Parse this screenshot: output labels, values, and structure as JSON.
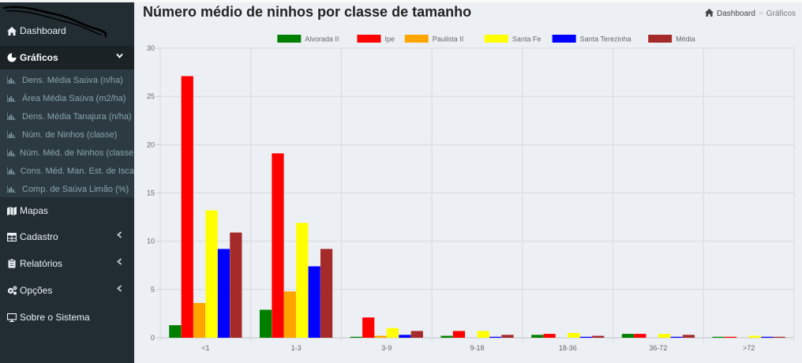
{
  "sidebar": {
    "items": [
      {
        "label": "Dashboard",
        "icon": "home-icon"
      },
      {
        "label": "Gráficos",
        "icon": "pie-chart-icon",
        "chevron": "chevron-down-icon",
        "active": true
      },
      {
        "label": "Mapas",
        "icon": "map-icon"
      },
      {
        "label": "Cadastro",
        "icon": "table-icon",
        "chevron": "chevron-left-icon"
      },
      {
        "label": "Relatórios",
        "icon": "clipboard-icon",
        "chevron": "chevron-left-icon"
      },
      {
        "label": "Opções",
        "icon": "cogs-icon",
        "chevron": "chevron-left-icon"
      },
      {
        "label": "Sobre o Sistema",
        "icon": "desktop-icon"
      }
    ],
    "submenu": [
      {
        "label": "Dens. Média Saúva (n/ha)"
      },
      {
        "label": "Área Média Saúva (m2/ha)"
      },
      {
        "label": "Dens. Média Tanajura (n/ha)"
      },
      {
        "label": "Núm. de Ninhos (classe)"
      },
      {
        "label": "Núm. Méd. de Ninhos (classe)"
      },
      {
        "label": "Cons. Méd. Man. Est. de Isca"
      },
      {
        "label": "Comp. de Saúva Limão (%)"
      }
    ]
  },
  "header": {
    "title": "Número médio de ninhos por classe de tamanho",
    "breadcrumb": [
      {
        "label": "Dashboard",
        "icon": "home-icon"
      },
      {
        "label": "Gráficos"
      }
    ]
  },
  "colors": {
    "sidebar_bg": "#222d32",
    "submenu_bg": "#2c3b41",
    "content_bg": "#ecf0f5"
  },
  "chart_data": {
    "type": "bar",
    "title": "",
    "xlabel": "",
    "ylabel": "",
    "ylim": [
      0,
      30
    ],
    "yticks": [
      0,
      5,
      10,
      15,
      20,
      25,
      30
    ],
    "grid": true,
    "legend_position": "top",
    "categories": [
      "<1",
      "1-3",
      "3-9",
      "9-18",
      "18-36",
      "36-72",
      ">72"
    ],
    "series": [
      {
        "name": "Alvorada II",
        "color": "#008000",
        "values": [
          1.3,
          2.9,
          0.1,
          0.2,
          0.3,
          0.4,
          0.1
        ]
      },
      {
        "name": "Ipe",
        "color": "#ff0000",
        "values": [
          27.1,
          19.1,
          2.1,
          0.7,
          0.4,
          0.4,
          0.1
        ]
      },
      {
        "name": "Paulista II",
        "color": "#ffa500",
        "values": [
          3.6,
          4.8,
          0.2,
          0.0,
          0.0,
          0.0,
          0.0
        ]
      },
      {
        "name": "Santa Fe",
        "color": "#ffff00",
        "values": [
          13.2,
          11.9,
          1.0,
          0.7,
          0.5,
          0.4,
          0.2
        ]
      },
      {
        "name": "Santa Terezinha",
        "color": "#0000ff",
        "values": [
          9.2,
          7.4,
          0.3,
          0.1,
          0.1,
          0.1,
          0.1
        ]
      },
      {
        "name": "Média",
        "color": "#a52a2a",
        "values": [
          10.9,
          9.2,
          0.7,
          0.3,
          0.2,
          0.3,
          0.1
        ]
      }
    ]
  }
}
